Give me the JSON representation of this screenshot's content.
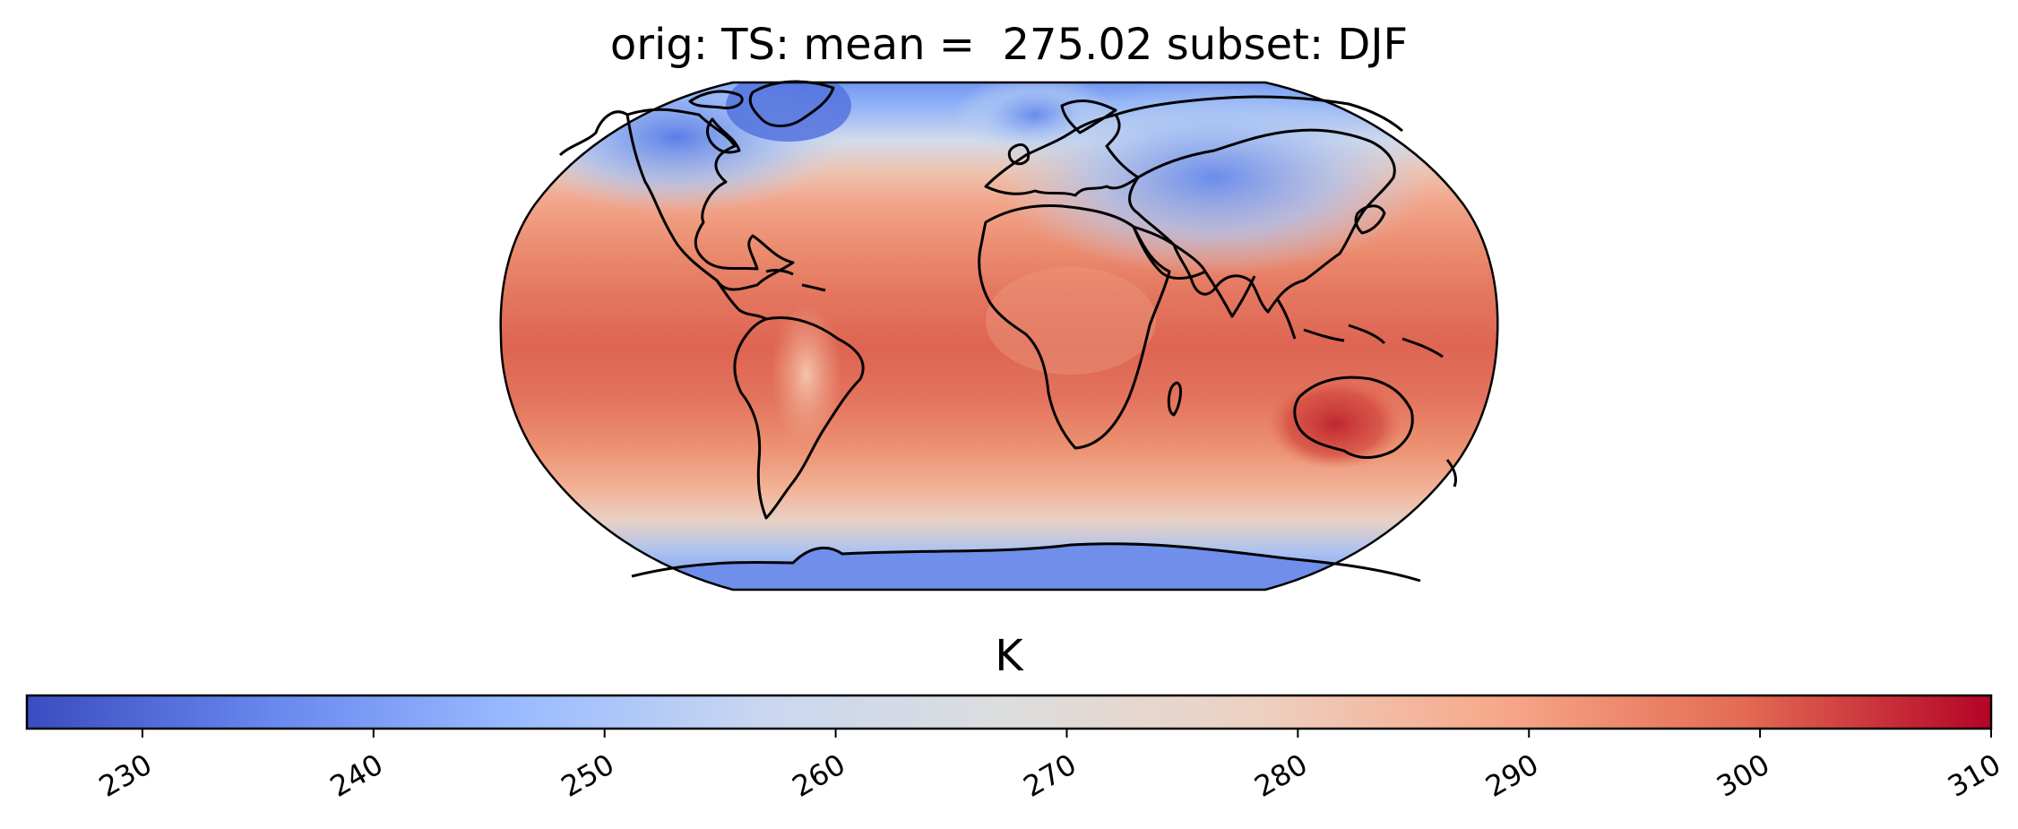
{
  "map": {
    "title": "orig: TS: mean =  275.02 subset: DJF",
    "projection": "Robinson",
    "variable": "TS",
    "mean": 275.02,
    "subset": "DJF",
    "colormap": "coolwarm",
    "coastlines": true
  },
  "colorbar": {
    "label": "K",
    "orientation": "horizontal",
    "vmin": 225,
    "vmax": 310,
    "ticks": [
      "230",
      "240",
      "250",
      "260",
      "270",
      "280",
      "290",
      "300",
      "310"
    ],
    "colors": [
      "#3b4cc0",
      "#6788ee",
      "#9abbff",
      "#c9d7f0",
      "#dcdddd",
      "#edd1c2",
      "#f7a889",
      "#e36a53",
      "#b40426"
    ]
  }
}
